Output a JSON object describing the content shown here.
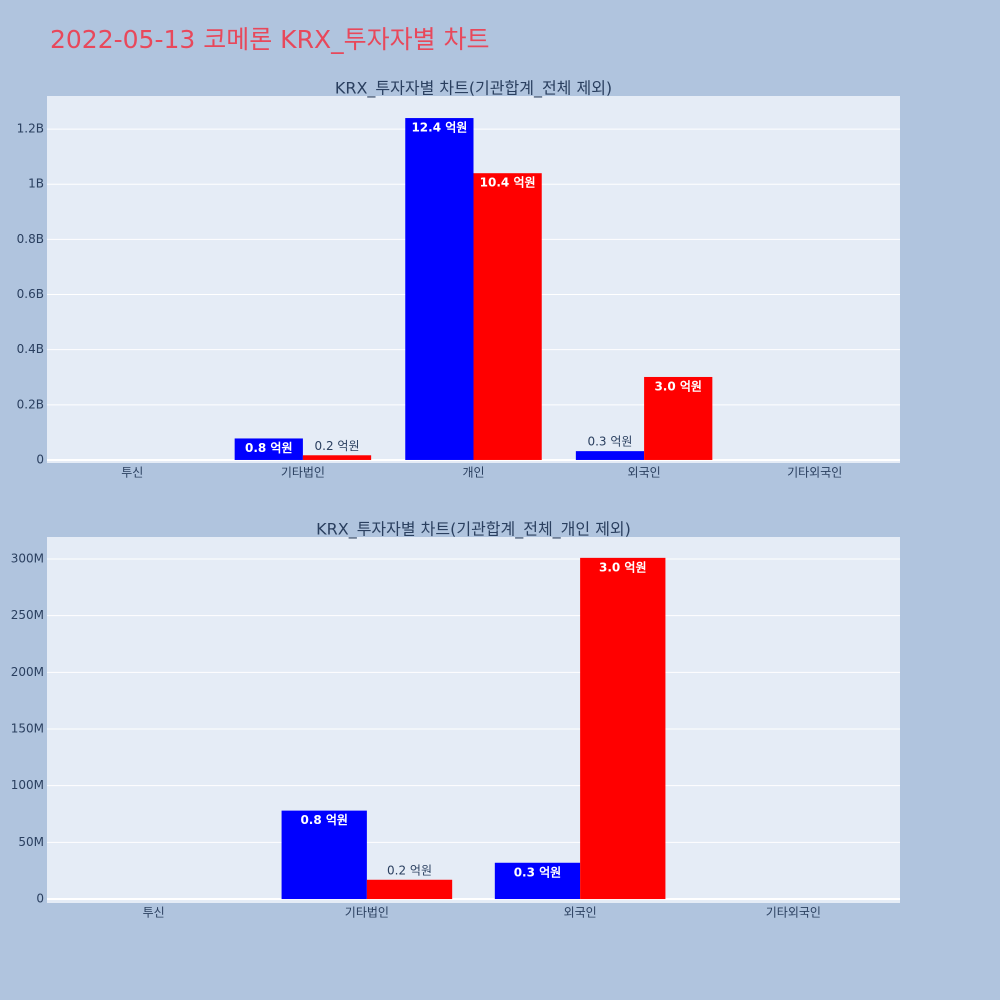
{
  "title": "2022-05-13 코메론 KRX_투자자별 차트",
  "chart_data": [
    {
      "type": "bar",
      "title": "KRX_투자자별 차트(기관합계_전체 제외)",
      "categories": [
        "투신",
        "기타법인",
        "개인",
        "외국인",
        "기타외국인"
      ],
      "series": [
        {
          "color": "#0000ff",
          "values": [
            0,
            78000000,
            1240000000,
            32000000,
            0
          ],
          "value_labels": [
            null,
            "0.8 억원",
            "12.4 억원",
            "0.3 억원",
            null
          ]
        },
        {
          "color": "#ff0000",
          "values": [
            0,
            17000000,
            1040000000,
            301000000,
            0
          ],
          "value_labels": [
            null,
            "0.2 억원",
            "10.4 억원",
            "3.0 억원",
            null
          ]
        }
      ],
      "ylim": [
        -11000000,
        1320000000
      ],
      "yticks": [
        0,
        {
          "value": 200000000,
          "label": "0.2B"
        },
        {
          "value": 400000000,
          "label": "0.4B"
        },
        {
          "value": 600000000,
          "label": "0.6B"
        },
        {
          "value": 800000000,
          "label": "0.8B"
        },
        {
          "value": 1000000000,
          "label": "1B"
        },
        {
          "value": 1200000000,
          "label": "1.2B"
        }
      ],
      "grid": true
    },
    {
      "type": "bar",
      "title": "KRX_투자자별 차트(기관합계_전체_개인 제외)",
      "categories": [
        "투신",
        "기타법인",
        "외국인",
        "기타외국인"
      ],
      "series": [
        {
          "color": "#0000ff",
          "values": [
            0,
            78000000,
            32000000,
            0
          ],
          "value_labels": [
            null,
            "0.8 억원",
            "0.3 억원",
            null
          ]
        },
        {
          "color": "#ff0000",
          "values": [
            0,
            17000000,
            301000000,
            0
          ],
          "value_labels": [
            null,
            "0.2 억원",
            "3.0 억원",
            null
          ]
        }
      ],
      "ylim": [
        -3500000,
        319400000
      ],
      "yticks": [
        0,
        {
          "value": 50000000,
          "label": "50M"
        },
        {
          "value": 100000000,
          "label": "100M"
        },
        {
          "value": 150000000,
          "label": "150M"
        },
        {
          "value": 200000000,
          "label": "200M"
        },
        {
          "value": 250000000,
          "label": "250M"
        },
        {
          "value": 300000000,
          "label": "300M"
        }
      ],
      "grid": true
    }
  ]
}
